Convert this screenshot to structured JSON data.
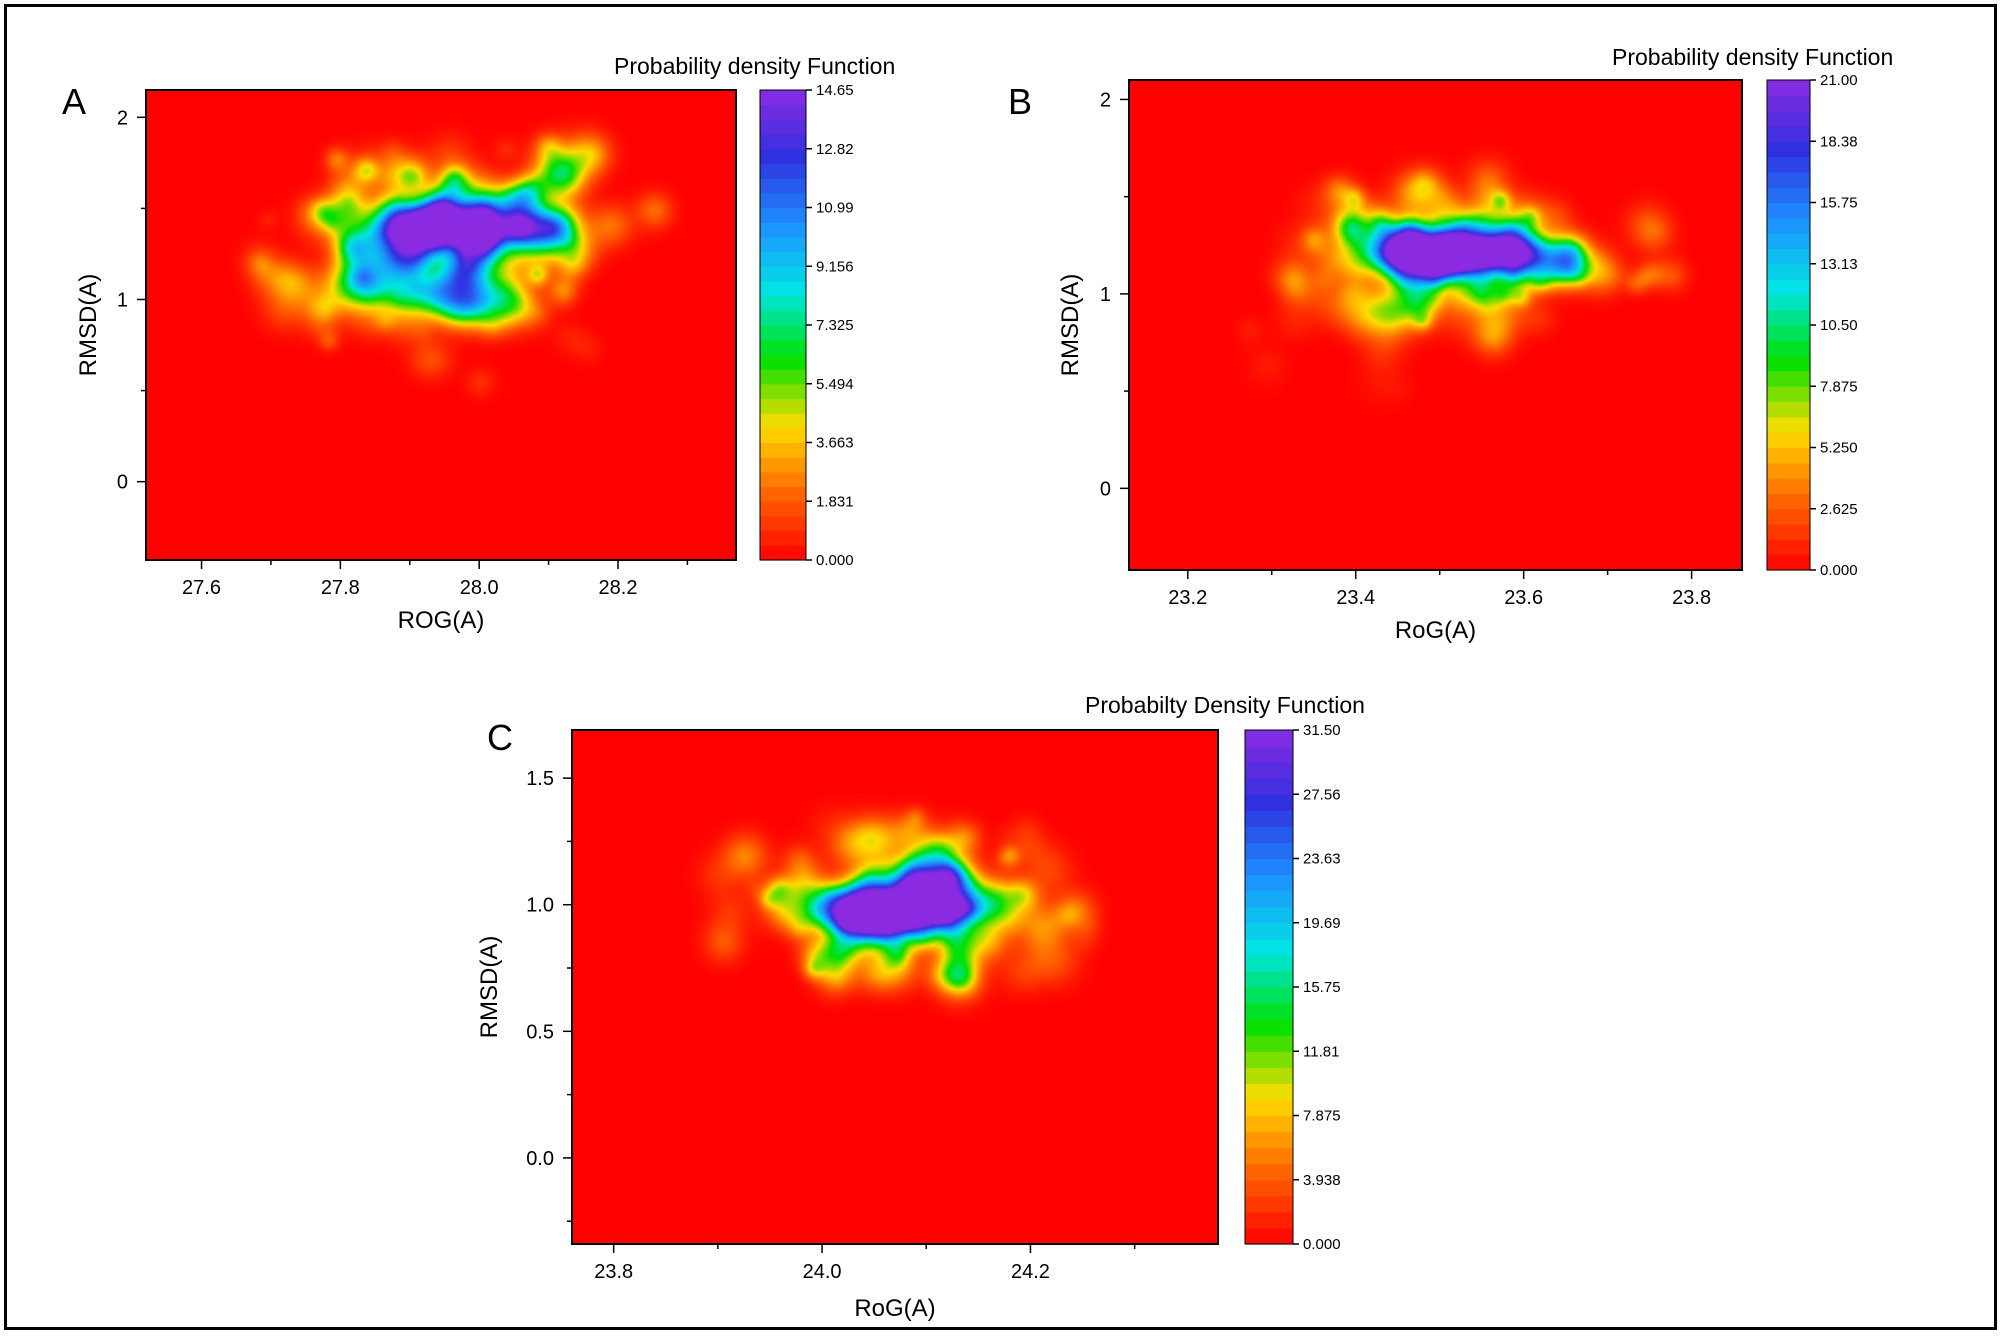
{
  "figure": {
    "background": "#ffffff",
    "border_color": "#000000"
  },
  "colormap": [
    "#ff0000",
    "#ff6600",
    "#ffdd00",
    "#00e000",
    "#00e5e5",
    "#1e90ff",
    "#3030e0",
    "#8a2be2"
  ],
  "chart_data": [
    {
      "id": "A",
      "type": "heatmap",
      "panel_label": "A",
      "colorbar_title": "Probability density Function",
      "xlabel": "ROG(A)",
      "ylabel": "RMSD(A)",
      "xlim": [
        27.52,
        28.37
      ],
      "ylim": [
        -0.43,
        2.15
      ],
      "xticks": [
        27.6,
        27.8,
        28.0,
        28.2
      ],
      "xtick_labels": [
        "27.6",
        "27.8",
        "28.0",
        "28.2"
      ],
      "yticks": [
        0,
        1,
        2
      ],
      "ytick_labels": [
        "0",
        "1",
        "2"
      ],
      "colorbar_ticks": [
        "0.000",
        "1.831",
        "3.663",
        "5.494",
        "7.325",
        "9.156",
        "10.99",
        "12.82",
        "14.65"
      ],
      "zmin": 0,
      "zmax": 14.65,
      "density_peaks": [
        {
          "x": 27.9,
          "y": 1.39,
          "z": 14.2
        },
        {
          "x": 27.97,
          "y": 1.4,
          "z": 13.6
        },
        {
          "x": 28.07,
          "y": 1.4,
          "z": 11.8
        },
        {
          "x": 27.84,
          "y": 1.07,
          "z": 6.5
        },
        {
          "x": 27.95,
          "y": 1.03,
          "z": 6.8
        },
        {
          "x": 28.0,
          "y": 0.97,
          "z": 4.6
        },
        {
          "x": 27.88,
          "y": 1.22,
          "z": 5.0
        }
      ]
    },
    {
      "id": "B",
      "type": "heatmap",
      "panel_label": "B",
      "colorbar_title": "Probability density Function",
      "xlabel": "RoG(A)",
      "ylabel": "RMSD(A)",
      "xlim": [
        23.13,
        23.86
      ],
      "ylim": [
        -0.42,
        2.1
      ],
      "xticks": [
        23.2,
        23.4,
        23.6,
        23.8
      ],
      "xtick_labels": [
        "23.2",
        "23.4",
        "23.6",
        "23.8"
      ],
      "yticks": [
        0,
        1,
        2
      ],
      "ytick_labels": [
        "0",
        "1",
        "2"
      ],
      "colorbar_ticks": [
        "0.000",
        "2.625",
        "5.250",
        "7.875",
        "10.50",
        "13.13",
        "15.75",
        "18.38",
        "21.00"
      ],
      "zmin": 0,
      "zmax": 21.0,
      "density_peaks": [
        {
          "x": 23.5,
          "y": 1.19,
          "z": 20.6
        },
        {
          "x": 23.55,
          "y": 1.22,
          "z": 18.0
        },
        {
          "x": 23.45,
          "y": 1.23,
          "z": 14.5
        },
        {
          "x": 23.62,
          "y": 1.19,
          "z": 11.0
        },
        {
          "x": 23.41,
          "y": 0.93,
          "z": 4.2
        }
      ]
    },
    {
      "id": "C",
      "type": "heatmap",
      "panel_label": "C",
      "colorbar_title": "Probabilty Density Function",
      "xlabel": "RoG(A)",
      "ylabel": "RMSD(A)",
      "xlim": [
        23.76,
        24.38
      ],
      "ylim": [
        -0.34,
        1.69
      ],
      "xticks": [
        23.8,
        24.0,
        24.2
      ],
      "xtick_labels": [
        "23.8",
        "24.0",
        "24.2"
      ],
      "yticks": [
        0.0,
        0.5,
        1.0,
        1.5
      ],
      "ytick_labels": [
        "0.0",
        "0.5",
        "1.0",
        "1.5"
      ],
      "colorbar_ticks": [
        "0.000",
        "3.938",
        "7.875",
        "11.81",
        "15.75",
        "19.69",
        "23.63",
        "27.56",
        "31.50"
      ],
      "zmin": 0,
      "zmax": 31.5,
      "density_peaks": [
        {
          "x": 24.06,
          "y": 0.96,
          "z": 31.0
        },
        {
          "x": 24.03,
          "y": 0.98,
          "z": 26.0
        },
        {
          "x": 24.1,
          "y": 0.99,
          "z": 24.0
        },
        {
          "x": 24.09,
          "y": 1.1,
          "z": 13.0
        },
        {
          "x": 24.14,
          "y": 1.01,
          "z": 11.0
        }
      ]
    }
  ]
}
